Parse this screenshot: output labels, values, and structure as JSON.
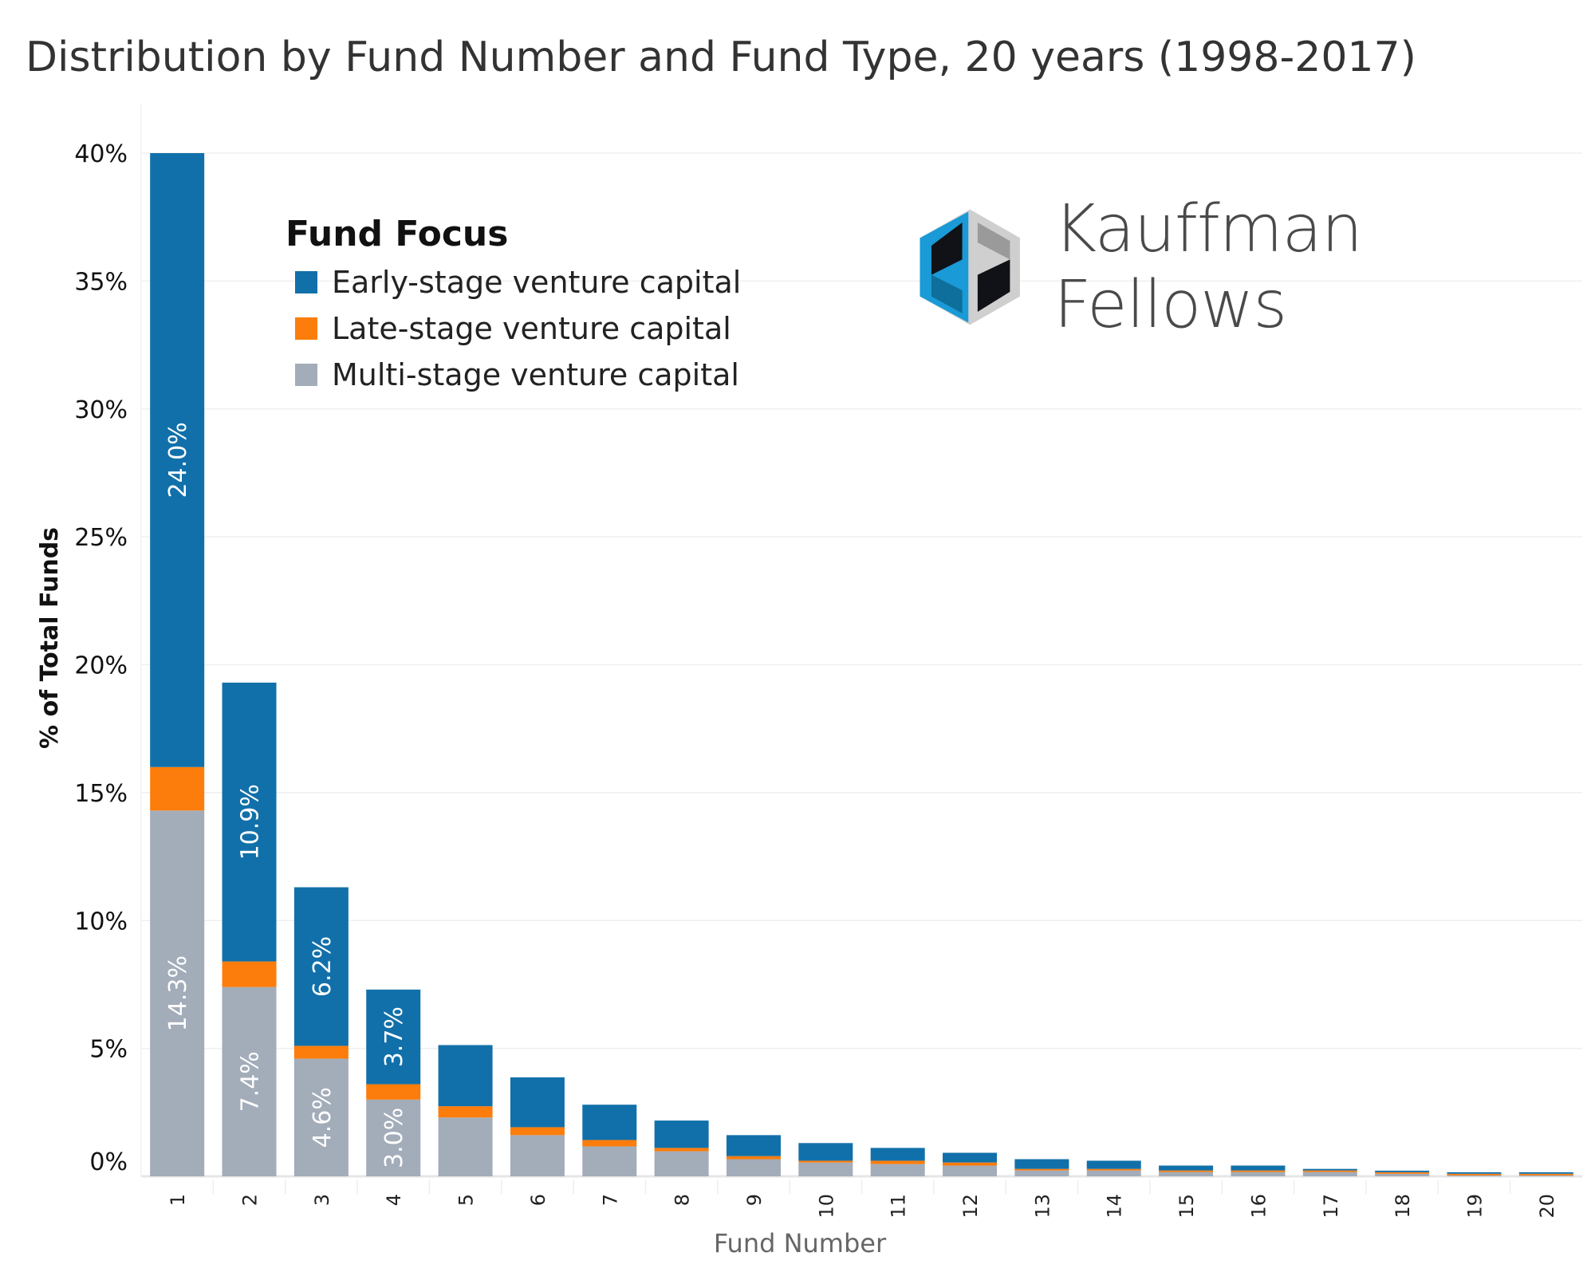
{
  "chart_data": {
    "type": "bar",
    "stacked": true,
    "title": "Distribution by Fund Number and Fund Type, 20 years (1998-2017)",
    "xlabel": "Fund Number",
    "ylabel": "% of Total Funds",
    "ylim": [
      0,
      40
    ],
    "yticks": [
      "0%",
      "5%",
      "10%",
      "15%",
      "20%",
      "25%",
      "30%",
      "35%",
      "40%"
    ],
    "grid": true,
    "legend_title": "Fund Focus",
    "legend_position": "top-left",
    "categories": [
      "1",
      "2",
      "3",
      "4",
      "5",
      "6",
      "7",
      "8",
      "9",
      "10",
      "11",
      "12",
      "13",
      "14",
      "15",
      "16",
      "17",
      "18",
      "19",
      "20"
    ],
    "series": [
      {
        "name": "Multi-stage venture capital",
        "color": "#A3ACB9",
        "values": [
          14.3,
          7.4,
          4.6,
          3.0,
          2.3,
          1.61,
          1.17,
          0.98,
          0.67,
          0.54,
          0.48,
          0.42,
          0.23,
          0.23,
          0.17,
          0.17,
          0.17,
          0.1,
          0.04,
          0.04
        ],
        "labels": [
          "14.3%",
          "7.4%",
          "4.6%",
          "3.0%",
          "",
          "",
          "",
          "",
          "",
          "",
          "",
          "",
          "",
          "",
          "",
          "",
          "",
          "",
          "",
          ""
        ]
      },
      {
        "name": "Late-stage venture capital",
        "color": "#FC7D0B",
        "values": [
          1.7,
          1.0,
          0.5,
          0.6,
          0.44,
          0.31,
          0.25,
          0.13,
          0.12,
          0.07,
          0.13,
          0.12,
          0.06,
          0.06,
          0.06,
          0.06,
          0.06,
          0.06,
          0.06,
          0.06
        ],
        "labels": [
          "",
          "",
          "",
          "",
          "",
          "",
          "",
          "",
          "",
          "",
          "",
          "",
          "",
          "",
          "",
          "",
          "",
          "",
          "",
          ""
        ]
      },
      {
        "name": "Early-stage venture capital",
        "color": "#1170AA",
        "values": [
          24.0,
          10.9,
          6.2,
          3.7,
          2.39,
          1.95,
          1.38,
          1.07,
          0.82,
          0.69,
          0.5,
          0.38,
          0.38,
          0.32,
          0.19,
          0.19,
          0.06,
          0.06,
          0.06,
          0.06
        ],
        "labels": [
          "24.0%",
          "10.9%",
          "6.2%",
          "3.7%",
          "",
          "",
          "",
          "",
          "",
          "",
          "",
          "",
          "",
          "",
          "",
          "",
          "",
          "",
          "",
          ""
        ]
      }
    ],
    "legend_order": [
      2,
      1,
      0
    ]
  },
  "logo": {
    "text": "Kauffman Fellows"
  }
}
